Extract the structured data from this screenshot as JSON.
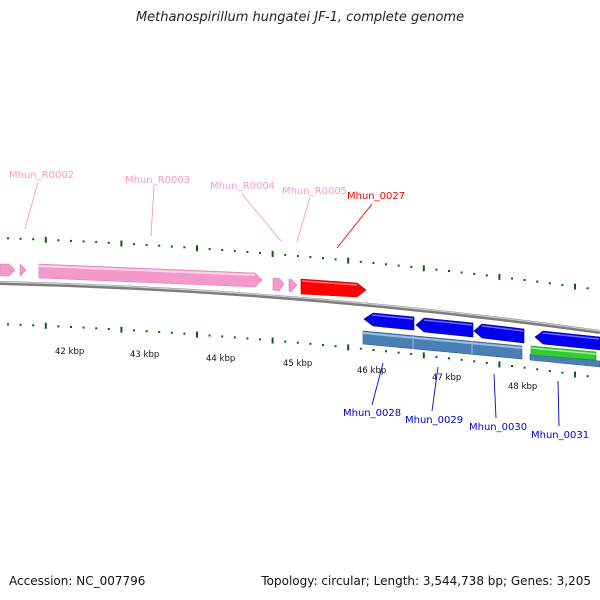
{
  "title": "Methanospirillum hungatei JF-1, complete genome",
  "footer": {
    "accession": "Accession: NC_007796",
    "summary": "Topology: circular; Length: 3,544,738 bp; Genes: 3,205"
  },
  "colors": {
    "rna_gene": "#f49ac9",
    "forward_cds": "#ff0000",
    "reverse_cds": "#0000ff",
    "reverse_cds_band": "#4a7fb5",
    "other_feature": "#33cc33",
    "tick": "#006600",
    "backbone": "#888888"
  },
  "scale_labels": [
    "42 kbp",
    "43 kbp",
    "44 kbp",
    "45 kbp",
    "46 kbp",
    "47 kbp",
    "48 kbp"
  ],
  "gene_labels": {
    "top": [
      {
        "text": "Mhun_R0002",
        "type": "rna"
      },
      {
        "text": "Mhun_R0003",
        "type": "rna"
      },
      {
        "text": "Mhun_R0004",
        "type": "rna"
      },
      {
        "text": "Mhun_R0005",
        "type": "rna"
      },
      {
        "text": "Mhun_0027",
        "type": "forward"
      }
    ],
    "bottom": [
      {
        "text": "Mhun_0028",
        "type": "reverse"
      },
      {
        "text": "Mhun_0029",
        "type": "reverse"
      },
      {
        "text": "Mhun_0030",
        "type": "reverse"
      },
      {
        "text": "Mhun_0031",
        "type": "reverse"
      }
    ]
  }
}
